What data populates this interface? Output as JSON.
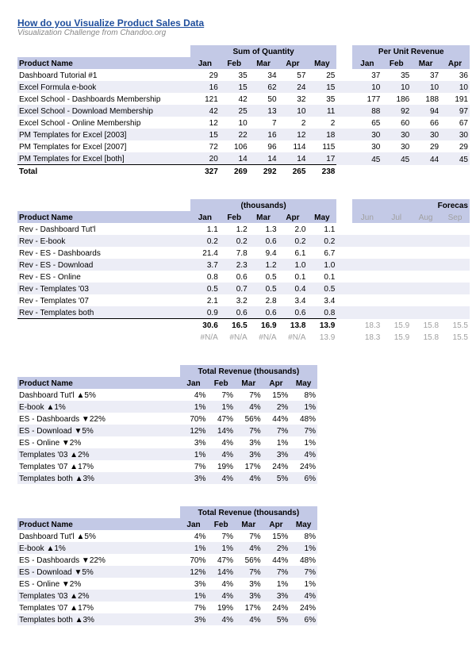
{
  "title": "How do you Visualize Product Sales Data",
  "subtitle": "Visualization Challenge from Chandoo.org",
  "table1": {
    "group_headers": [
      "Sum of Quantity",
      "Per Unit Revenue"
    ],
    "product_header": "Product Name",
    "months_qty": [
      "Jan",
      "Feb",
      "Mar",
      "Apr",
      "May"
    ],
    "months_rev": [
      "Jan",
      "Feb",
      "Mar",
      "Apr"
    ],
    "rows": [
      {
        "name": "Dashboard Tutorial #1",
        "q": [
          29,
          35,
          34,
          57,
          25
        ],
        "r": [
          37,
          35,
          37,
          36
        ]
      },
      {
        "name": "Excel Formula e-book",
        "q": [
          16,
          15,
          62,
          24,
          15
        ],
        "r": [
          10,
          10,
          10,
          10
        ]
      },
      {
        "name": "Excel School - Dashboards Membership",
        "q": [
          121,
          42,
          50,
          32,
          35
        ],
        "r": [
          177,
          186,
          188,
          191
        ]
      },
      {
        "name": "Excel School - Download Membership",
        "q": [
          42,
          25,
          13,
          10,
          11
        ],
        "r": [
          88,
          92,
          94,
          97
        ]
      },
      {
        "name": "Excel School - Online Membership",
        "q": [
          12,
          10,
          7,
          2,
          2
        ],
        "r": [
          65,
          60,
          66,
          67
        ]
      },
      {
        "name": "PM Templates for Excel [2003]",
        "q": [
          15,
          22,
          16,
          12,
          18
        ],
        "r": [
          30,
          30,
          30,
          30
        ]
      },
      {
        "name": "PM Templates for Excel [2007]",
        "q": [
          72,
          106,
          96,
          114,
          115
        ],
        "r": [
          30,
          30,
          29,
          29
        ]
      },
      {
        "name": "PM Templates for Excel [both]",
        "q": [
          20,
          14,
          14,
          14,
          17
        ],
        "r": [
          45,
          45,
          44,
          45
        ]
      }
    ],
    "total_label": "Total",
    "totals": [
      327,
      269,
      292,
      265,
      238
    ]
  },
  "table2": {
    "group_header": "(thousands)",
    "forecast_header": "Forecas",
    "product_header": "Product Name",
    "months": [
      "Jan",
      "Feb",
      "Mar",
      "Apr",
      "May"
    ],
    "fmonths": [
      "Jun",
      "Jul",
      "Aug",
      "Sep"
    ],
    "rows": [
      {
        "name": "Rev - Dashboard Tut'l",
        "v": [
          "1.1",
          "1.2",
          "1.3",
          "2.0",
          "1.1"
        ]
      },
      {
        "name": "Rev - E-book",
        "v": [
          "0.2",
          "0.2",
          "0.6",
          "0.2",
          "0.2"
        ]
      },
      {
        "name": "Rev - ES - Dashboards",
        "v": [
          "21.4",
          "7.8",
          "9.4",
          "6.1",
          "6.7"
        ]
      },
      {
        "name": "Rev - ES - Download",
        "v": [
          "3.7",
          "2.3",
          "1.2",
          "1.0",
          "1.0"
        ]
      },
      {
        "name": "Rev - ES - Online",
        "v": [
          "0.8",
          "0.6",
          "0.5",
          "0.1",
          "0.1"
        ]
      },
      {
        "name": "Rev - Templates '03",
        "v": [
          "0.5",
          "0.7",
          "0.5",
          "0.4",
          "0.5"
        ]
      },
      {
        "name": "Rev - Templates '07",
        "v": [
          "2.1",
          "3.2",
          "2.8",
          "3.4",
          "3.4"
        ]
      },
      {
        "name": "Rev - Templates both",
        "v": [
          "0.9",
          "0.6",
          "0.6",
          "0.6",
          "0.8"
        ]
      }
    ],
    "totals": [
      "30.6",
      "16.5",
      "16.9",
      "13.8",
      "13.9"
    ],
    "forecast_totals": [
      "18.3",
      "15.9",
      "15.8",
      "15.5"
    ],
    "na_row": [
      "#N/A",
      "#N/A",
      "#N/A",
      "#N/A",
      "13.9"
    ],
    "na_forecast": [
      "18.3",
      "15.9",
      "15.8",
      "15.5"
    ]
  },
  "table3": {
    "group_header": "Total Revenue (thousands)",
    "product_header": "Product Name",
    "months": [
      "Jan",
      "Feb",
      "Mar",
      "Apr",
      "May"
    ],
    "rows": [
      {
        "name": "Dashboard Tut'l ▲5%",
        "v": [
          "4%",
          "7%",
          "7%",
          "15%",
          "8%"
        ]
      },
      {
        "name": "E-book ▲1%",
        "v": [
          "1%",
          "1%",
          "4%",
          "2%",
          "1%"
        ]
      },
      {
        "name": "ES - Dashboards ▼22%",
        "v": [
          "70%",
          "47%",
          "56%",
          "44%",
          "48%"
        ]
      },
      {
        "name": "ES - Download ▼5%",
        "v": [
          "12%",
          "14%",
          "7%",
          "7%",
          "7%"
        ]
      },
      {
        "name": "ES - Online ▼2%",
        "v": [
          "3%",
          "4%",
          "3%",
          "1%",
          "1%"
        ]
      },
      {
        "name": "Templates '03 ▲2%",
        "v": [
          "1%",
          "4%",
          "3%",
          "3%",
          "4%"
        ]
      },
      {
        "name": "Templates '07 ▲17%",
        "v": [
          "7%",
          "19%",
          "17%",
          "24%",
          "24%"
        ]
      },
      {
        "name": "Templates both ▲3%",
        "v": [
          "3%",
          "4%",
          "4%",
          "5%",
          "6%"
        ]
      }
    ]
  }
}
